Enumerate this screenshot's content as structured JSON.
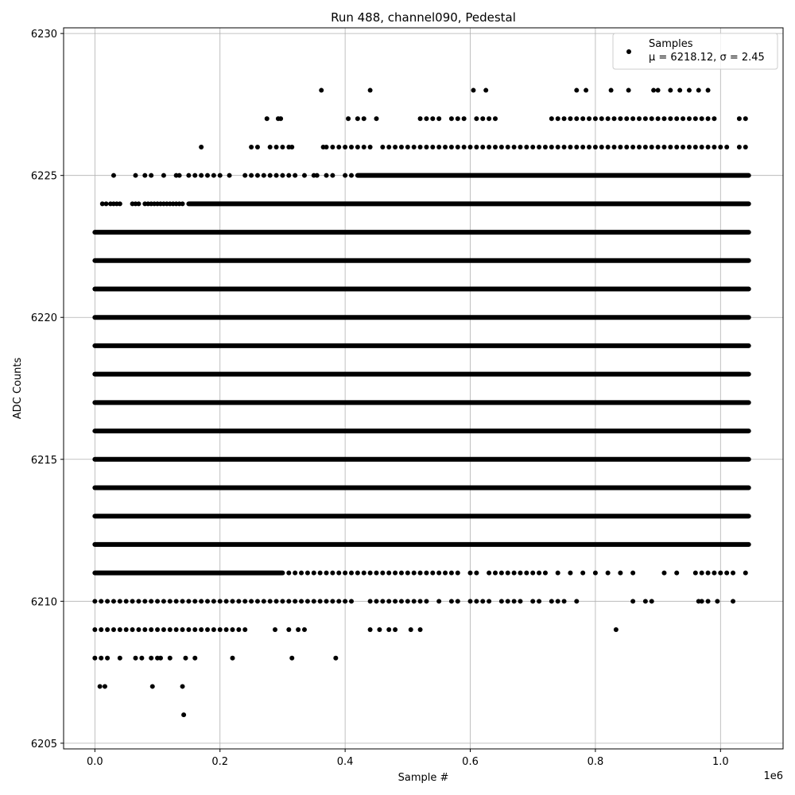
{
  "chart_data": {
    "type": "scatter",
    "title": "Run 488, channel090, Pedestal",
    "xlabel": "Sample #",
    "ylabel": "ADC Counts",
    "x_scale_label": "1e6",
    "xlim": [
      -0.05,
      1.1
    ],
    "ylim": [
      6204.8,
      6230.2
    ],
    "x_ticks": [
      0.0,
      0.2,
      0.4,
      0.6,
      0.8,
      1.0
    ],
    "x_tick_labels": [
      "0.0",
      "0.2",
      "0.4",
      "0.6",
      "0.8",
      "1.0"
    ],
    "y_ticks": [
      6205,
      6210,
      6215,
      6220,
      6225,
      6230
    ],
    "y_tick_labels": [
      "6205",
      "6210",
      "6215",
      "6220",
      "6225",
      "6230"
    ],
    "grid": true,
    "legend_position": "top-right",
    "marker_color": "#000000",
    "series": [
      {
        "name": "Samples",
        "description_line": "μ = 6218.12, σ = 2.45",
        "dense_bands": [
          {
            "y": 6222,
            "x_range": [
              0.0,
              1.045
            ]
          },
          {
            "y": 6221,
            "x_range": [
              0.0,
              1.045
            ]
          },
          {
            "y": 6220,
            "x_range": [
              0.0,
              1.045
            ]
          },
          {
            "y": 6219,
            "x_range": [
              0.0,
              1.045
            ]
          },
          {
            "y": 6218,
            "x_range": [
              0.0,
              1.045
            ]
          },
          {
            "y": 6217,
            "x_range": [
              0.0,
              1.045
            ]
          },
          {
            "y": 6216,
            "x_range": [
              0.0,
              1.045
            ]
          },
          {
            "y": 6215,
            "x_range": [
              0.0,
              1.045
            ]
          },
          {
            "y": 6214,
            "x_range": [
              0.0,
              1.045
            ]
          },
          {
            "y": 6213,
            "x_range": [
              0.0,
              1.045
            ]
          },
          {
            "y": 6223,
            "x_range": [
              0.0,
              1.045
            ]
          },
          {
            "y": 6212,
            "x_range": [
              0.0,
              1.045
            ]
          },
          {
            "y": 6224,
            "x_range": [
              0.15,
              1.045
            ]
          },
          {
            "y": 6211,
            "x_range": [
              0.0,
              0.3
            ]
          },
          {
            "y": 6225,
            "x_range": [
              0.42,
              1.045
            ]
          }
        ],
        "sparse_bands": [
          {
            "y": 6224,
            "x": [
              0.012,
              0.018,
              0.025,
              0.03,
              0.035,
              0.04,
              0.06,
              0.065,
              0.07,
              0.08,
              0.085,
              0.09,
              0.095,
              0.1,
              0.105,
              0.11,
              0.115,
              0.12,
              0.125,
              0.13,
              0.135,
              0.14
            ]
          },
          {
            "y": 6225,
            "x": [
              0.03,
              0.065,
              0.08,
              0.09,
              0.11,
              0.13,
              0.135,
              0.15,
              0.16,
              0.17,
              0.18,
              0.19,
              0.2,
              0.215,
              0.24,
              0.25,
              0.26,
              0.27,
              0.28,
              0.29,
              0.3,
              0.31,
              0.32,
              0.335,
              0.35,
              0.355,
              0.37,
              0.38,
              0.4,
              0.41
            ]
          },
          {
            "y": 6226,
            "x": [
              0.17,
              0.25,
              0.26,
              0.28,
              0.29,
              0.3,
              0.31,
              0.315,
              0.365,
              0.37,
              0.38,
              0.39,
              0.4,
              0.41,
              0.42,
              0.43,
              0.44,
              0.46,
              0.47,
              0.48,
              0.49,
              0.5,
              0.51,
              0.52,
              0.53,
              0.54,
              0.55,
              0.56,
              0.57,
              0.58,
              0.59,
              0.6,
              0.61,
              0.62,
              0.63,
              0.64,
              0.65,
              0.66,
              0.67,
              0.68,
              0.69,
              0.7,
              0.71,
              0.72,
              0.73,
              0.74,
              0.75,
              0.76,
              0.77,
              0.78,
              0.79,
              0.8,
              0.81,
              0.82,
              0.83,
              0.84,
              0.85,
              0.86,
              0.87,
              0.88,
              0.89,
              0.9,
              0.91,
              0.92,
              0.93,
              0.94,
              0.95,
              0.96,
              0.97,
              0.98,
              0.99,
              1.0,
              1.01,
              1.03,
              1.04
            ]
          },
          {
            "y": 6227,
            "x": [
              0.275,
              0.293,
              0.297,
              0.405,
              0.42,
              0.43,
              0.45,
              0.52,
              0.53,
              0.54,
              0.55,
              0.57,
              0.58,
              0.59,
              0.61,
              0.62,
              0.63,
              0.64,
              0.73,
              0.74,
              0.75,
              0.76,
              0.77,
              0.78,
              0.79,
              0.8,
              0.81,
              0.82,
              0.83,
              0.84,
              0.85,
              0.86,
              0.87,
              0.88,
              0.89,
              0.9,
              0.91,
              0.92,
              0.93,
              0.94,
              0.95,
              0.96,
              0.97,
              0.98,
              0.99,
              1.03,
              1.04
            ]
          },
          {
            "y": 6228,
            "x": [
              0.362,
              0.44,
              0.605,
              0.625,
              0.77,
              0.785,
              0.825,
              0.853,
              0.893,
              0.9,
              0.92,
              0.935,
              0.95,
              0.965,
              0.98
            ]
          },
          {
            "y": 6211,
            "x": [
              0.31,
              0.32,
              0.33,
              0.34,
              0.35,
              0.36,
              0.37,
              0.38,
              0.39,
              0.4,
              0.41,
              0.42,
              0.43,
              0.44,
              0.45,
              0.46,
              0.47,
              0.48,
              0.49,
              0.5,
              0.51,
              0.52,
              0.53,
              0.54,
              0.55,
              0.56,
              0.57,
              0.58,
              0.6,
              0.61,
              0.63,
              0.64,
              0.65,
              0.66,
              0.67,
              0.68,
              0.69,
              0.7,
              0.71,
              0.72,
              0.74,
              0.76,
              0.78,
              0.8,
              0.82,
              0.84,
              0.86,
              0.91,
              0.93,
              0.96,
              0.97,
              0.98,
              0.99,
              1.0,
              1.01,
              1.02,
              1.04
            ]
          },
          {
            "y": 6210,
            "x": [
              0.0,
              0.01,
              0.02,
              0.03,
              0.04,
              0.05,
              0.06,
              0.07,
              0.08,
              0.09,
              0.1,
              0.11,
              0.12,
              0.13,
              0.14,
              0.15,
              0.16,
              0.17,
              0.18,
              0.19,
              0.2,
              0.21,
              0.22,
              0.23,
              0.24,
              0.25,
              0.26,
              0.27,
              0.28,
              0.29,
              0.3,
              0.31,
              0.32,
              0.33,
              0.34,
              0.35,
              0.36,
              0.37,
              0.38,
              0.39,
              0.4,
              0.41,
              0.44,
              0.45,
              0.46,
              0.47,
              0.48,
              0.49,
              0.5,
              0.51,
              0.52,
              0.53,
              0.55,
              0.57,
              0.58,
              0.6,
              0.61,
              0.62,
              0.63,
              0.65,
              0.66,
              0.67,
              0.68,
              0.7,
              0.71,
              0.73,
              0.74,
              0.75,
              0.77,
              0.86,
              0.88,
              0.89,
              0.965,
              0.97,
              0.98,
              0.995,
              1.02
            ]
          },
          {
            "y": 6209,
            "x": [
              0.0,
              0.01,
              0.02,
              0.03,
              0.04,
              0.05,
              0.06,
              0.07,
              0.08,
              0.09,
              0.1,
              0.11,
              0.12,
              0.13,
              0.14,
              0.15,
              0.16,
              0.17,
              0.18,
              0.19,
              0.2,
              0.21,
              0.22,
              0.23,
              0.24,
              0.288,
              0.31,
              0.325,
              0.335,
              0.44,
              0.455,
              0.47,
              0.48,
              0.505,
              0.52,
              0.833
            ]
          },
          {
            "y": 6208,
            "x": [
              0.0,
              0.01,
              0.02,
              0.04,
              0.065,
              0.075,
              0.09,
              0.1,
              0.105,
              0.12,
              0.145,
              0.16,
              0.22,
              0.315,
              0.385
            ]
          },
          {
            "y": 6207,
            "x": [
              0.008,
              0.016,
              0.092,
              0.14
            ]
          },
          {
            "y": 6206,
            "x": [
              0.142
            ]
          }
        ]
      }
    ]
  }
}
